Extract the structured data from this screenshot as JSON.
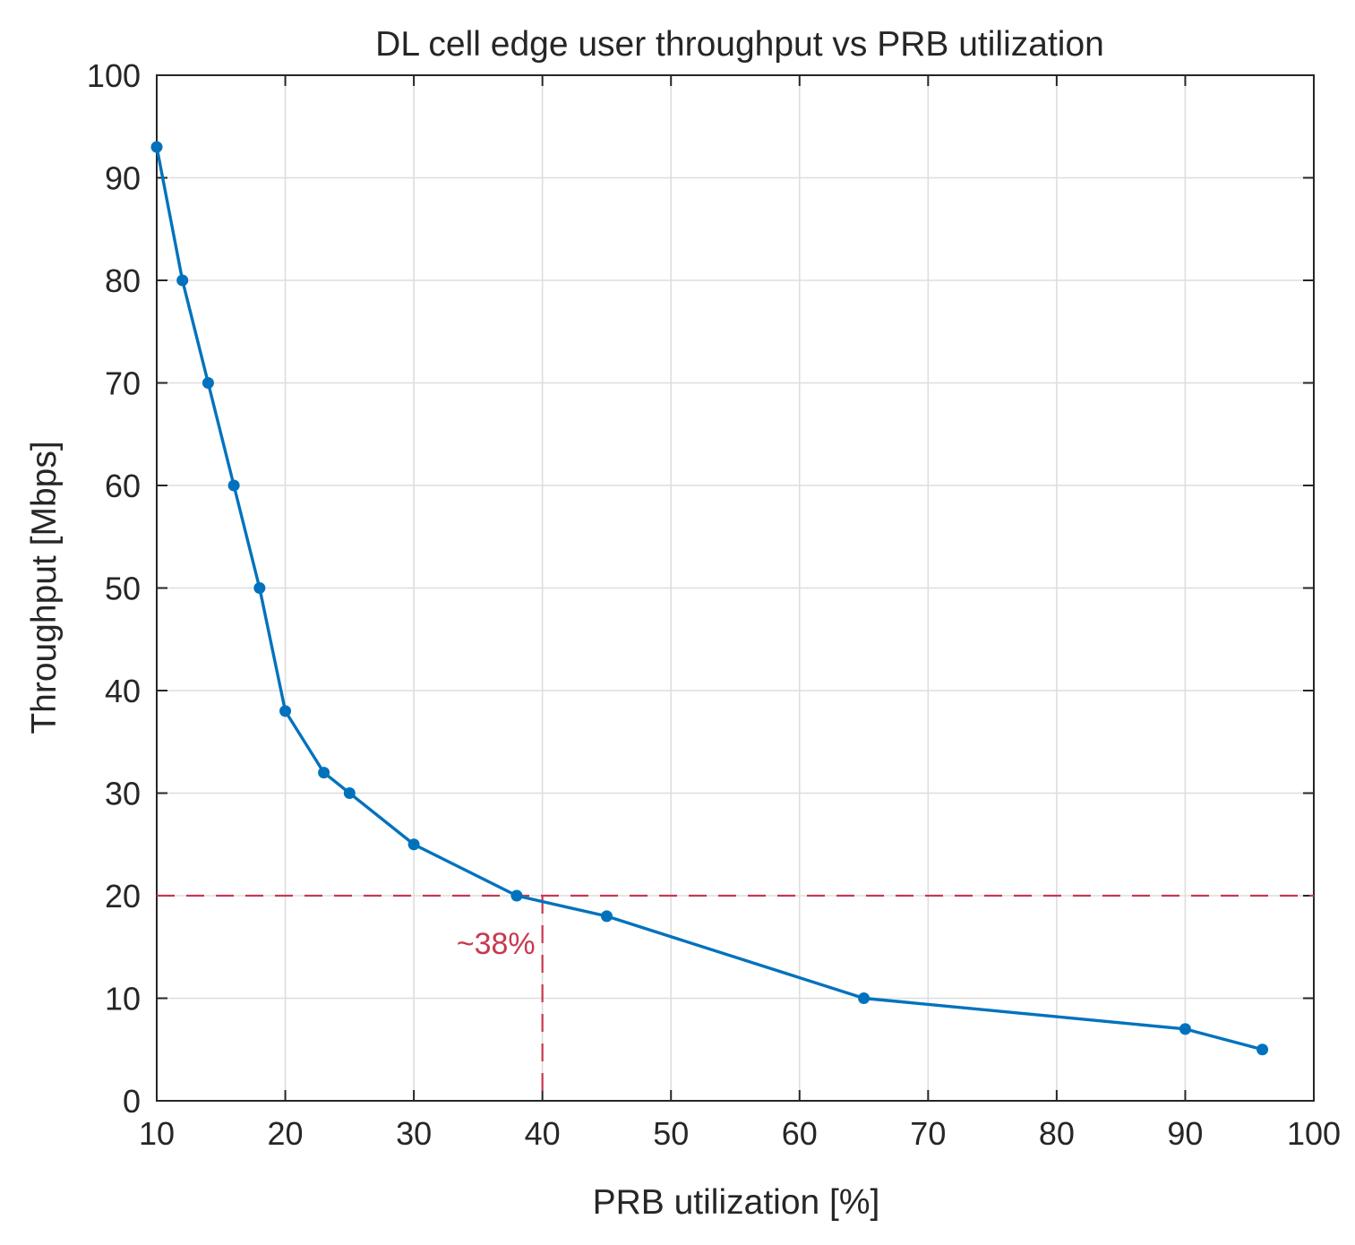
{
  "chart_data": {
    "type": "line",
    "title": "DL cell edge user throughput vs PRB utilization",
    "xlabel": "PRB utilization [%]",
    "ylabel": "Throughput [Mbps]",
    "xlim": [
      10,
      100
    ],
    "ylim": [
      0,
      100
    ],
    "xticks": [
      10,
      20,
      30,
      40,
      50,
      60,
      70,
      80,
      90,
      100
    ],
    "yticks": [
      0,
      10,
      20,
      30,
      40,
      50,
      60,
      70,
      80,
      90,
      100
    ],
    "grid": true,
    "series": [
      {
        "name": "Throughput",
        "color": "#0072BD",
        "x": [
          10,
          12,
          14,
          16,
          18,
          20,
          23,
          25,
          30,
          38,
          45,
          65,
          90,
          96
        ],
        "y": [
          93,
          80,
          70,
          60,
          50,
          38,
          32,
          30,
          25,
          20,
          18,
          10,
          7,
          5
        ]
      }
    ],
    "reference_lines": {
      "color": "#C8384F",
      "horizontal_y": 20,
      "vertical_x": 40,
      "annotation": "~38%"
    }
  }
}
